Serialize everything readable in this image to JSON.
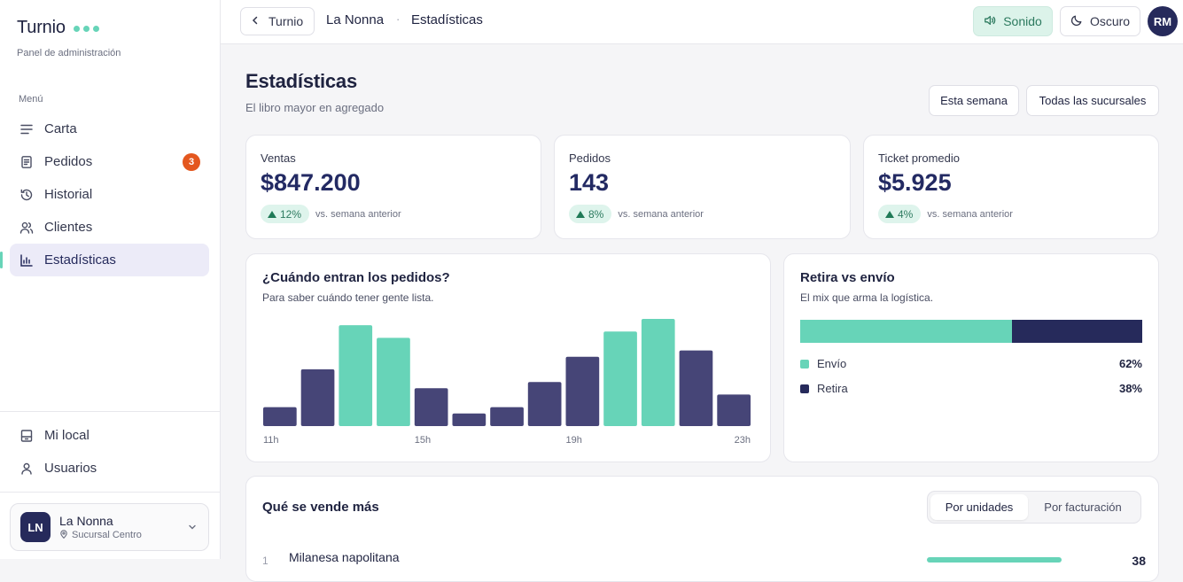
{
  "sidebar": {
    "brand": "Turnio",
    "subtitle": "Panel de administración",
    "menu_title": "Menú",
    "items": [
      {
        "label": "Carta",
        "icon": "menu-lines-icon"
      },
      {
        "label": "Pedidos",
        "icon": "receipt-icon",
        "badge": "3"
      },
      {
        "label": "Historial",
        "icon": "history-icon"
      },
      {
        "label": "Clientes",
        "icon": "users-icon"
      },
      {
        "label": "Estadísticas",
        "icon": "bar-chart-icon",
        "active": true
      }
    ],
    "bottom_items": [
      {
        "label": "Mi local",
        "icon": "store-icon"
      },
      {
        "label": "Usuarios",
        "icon": "user-icon"
      }
    ],
    "store": {
      "initials": "LN",
      "name": "La Nonna",
      "location": "Sucursal Centro"
    }
  },
  "topbar": {
    "back_label": "Turnio",
    "crumb_store": "La Nonna",
    "crumb_sep": "·",
    "crumb_page": "Estadísticas",
    "sound_label": "Sonido",
    "dark_label": "Oscuro",
    "user_initials": "RM"
  },
  "page": {
    "title": "Estadísticas",
    "subtitle": "El libro mayor en agregado",
    "filters": [
      "Esta semana",
      "Todas las sucursales"
    ]
  },
  "kpis": [
    {
      "label": "Ventas",
      "value": "$847.200",
      "delta": "12%",
      "note": "vs. semana anterior"
    },
    {
      "label": "Pedidos",
      "value": "143",
      "delta": "8%",
      "note": "vs. semana anterior"
    },
    {
      "label": "Ticket promedio",
      "value": "$5.925",
      "delta": "4%",
      "note": "vs. semana anterior"
    }
  ],
  "hours_card": {
    "title": "¿Cuándo entran los pedidos?",
    "subtitle": "Para saber cuándo tener gente lista."
  },
  "mix_card": {
    "title": "Retira vs envío",
    "subtitle": "El mix que arma la logística.",
    "items": [
      {
        "label": "Envío",
        "pct": "62%",
        "value": 62,
        "color": "#67d4b8"
      },
      {
        "label": "Retira",
        "pct": "38%",
        "value": 38,
        "color": "#262a5b"
      }
    ]
  },
  "top_card": {
    "title": "Qué se vende más",
    "tabs": [
      "Por unidades",
      "Por facturación"
    ],
    "active_tab": 0,
    "first_item": {
      "rank": "1",
      "name": "Milanesa napolitana",
      "value": "38"
    }
  },
  "colors": {
    "accent": "#67d4b8",
    "primary": "#464577",
    "navy": "#262a5b",
    "warning": "#e4571e"
  },
  "chart_data": {
    "type": "bar",
    "categories": [
      "11h",
      "12h",
      "13h",
      "14h",
      "15h",
      "16h",
      "17h",
      "18h",
      "19h",
      "20h",
      "21h",
      "22h",
      "23h"
    ],
    "values": [
      3,
      9,
      16,
      14,
      6,
      2,
      3,
      7,
      11,
      15,
      17,
      12,
      5
    ],
    "highlight": [
      "13h",
      "14h",
      "20h",
      "21h"
    ],
    "tick_labels": [
      "11h",
      "15h",
      "19h",
      "23h"
    ],
    "ylim": [
      0,
      17
    ],
    "grid": false
  }
}
